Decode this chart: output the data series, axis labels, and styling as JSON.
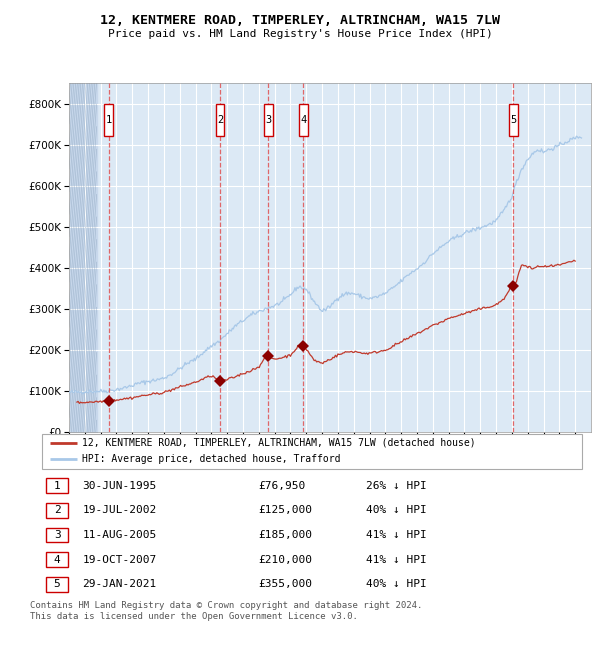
{
  "title1": "12, KENTMERE ROAD, TIMPERLEY, ALTRINCHAM, WA15 7LW",
  "title2": "Price paid vs. HM Land Registry's House Price Index (HPI)",
  "legend_line1": "12, KENTMERE ROAD, TIMPERLEY, ALTRINCHAM, WA15 7LW (detached house)",
  "legend_line2": "HPI: Average price, detached house, Trafford",
  "footer": "Contains HM Land Registry data © Crown copyright and database right 2024.\nThis data is licensed under the Open Government Licence v3.0.",
  "table_rows": [
    [
      "1",
      "30-JUN-1995",
      "£76,950",
      "26% ↓ HPI"
    ],
    [
      "2",
      "19-JUL-2002",
      "£125,000",
      "40% ↓ HPI"
    ],
    [
      "3",
      "11-AUG-2005",
      "£185,000",
      "41% ↓ HPI"
    ],
    [
      "4",
      "19-OCT-2007",
      "£210,000",
      "41% ↓ HPI"
    ],
    [
      "5",
      "29-JAN-2021",
      "£355,000",
      "40% ↓ HPI"
    ]
  ],
  "hpi_color": "#a8c8e8",
  "price_color": "#c0392b",
  "vline_color": "#e05050",
  "marker_color": "#8b0000",
  "bg_color": "#dce9f5",
  "yticks": [
    0,
    100000,
    200000,
    300000,
    400000,
    500000,
    600000,
    700000,
    800000
  ],
  "transaction_dates": [
    1995.5,
    2002.55,
    2005.61,
    2007.8,
    2021.08
  ],
  "tx_prices": [
    76950,
    125000,
    185000,
    210000,
    355000
  ],
  "xlim": [
    1993.0,
    2026.0
  ],
  "ylim": [
    0,
    850000
  ]
}
